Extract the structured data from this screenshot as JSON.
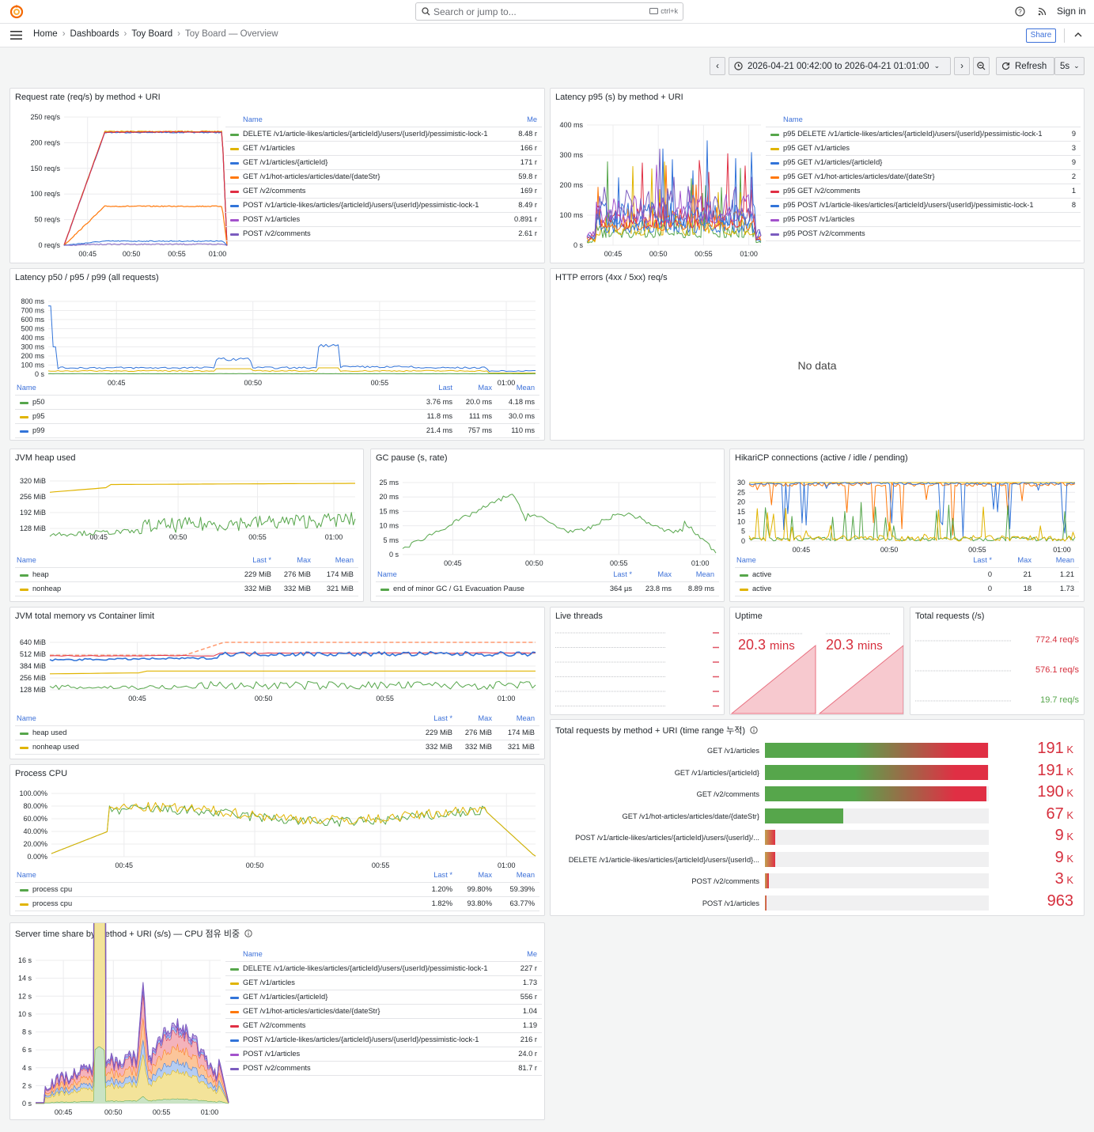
{
  "search": {
    "placeholder": "Search or jump to...",
    "shortcut": "ctrl+k"
  },
  "header": {
    "sign_in": "Sign in"
  },
  "breadcrumb": [
    "Home",
    "Dashboards",
    "Toy Board",
    "Toy Board — Overview"
  ],
  "toolbar": {
    "share": "Share",
    "time_range": "2026-04-21 00:42:00 to 2026-04-21 01:01:00",
    "refresh": "Refresh",
    "interval": "5s"
  },
  "colors": {
    "green": "#56a64b",
    "yellow": "#e0b400",
    "blue": "#3274d9",
    "orange": "#ff780a",
    "red": "#e02f44",
    "purple": "#a352cc",
    "violet": "#7b5cbf",
    "stat_red": "#d62f3d",
    "stat_green": "#56a64b"
  },
  "panels": {
    "req_rate": {
      "title": "Request rate (req/s) by method + URI",
      "yticks": [
        "250 req/s",
        "200 req/s",
        "150 req/s",
        "100 req/s",
        "50 req/s",
        "0 req/s"
      ],
      "xticks": [
        "00:45",
        "00:50",
        "00:55",
        "01:00"
      ],
      "legend_headers": {
        "name": "Name",
        "mean": "Me"
      },
      "legend": [
        {
          "name": "DELETE /v1/article-likes/articles/{articleId}/users/{userId}/pessimistic-lock-1",
          "mean": "8.48 r",
          "color": "green"
        },
        {
          "name": "GET /v1/articles",
          "mean": "166 r",
          "color": "yellow"
        },
        {
          "name": "GET /v1/articles/{articleId}",
          "mean": "171 r",
          "color": "blue"
        },
        {
          "name": "GET /v1/hot-articles/articles/date/{dateStr}",
          "mean": "59.8 r",
          "color": "orange"
        },
        {
          "name": "GET /v2/comments",
          "mean": "169 r",
          "color": "red"
        },
        {
          "name": "POST /v1/article-likes/articles/{articleId}/users/{userId}/pessimistic-lock-1",
          "mean": "8.49 r",
          "color": "blue"
        },
        {
          "name": "POST /v1/articles",
          "mean": "0.891 r",
          "color": "purple"
        },
        {
          "name": "POST /v2/comments",
          "mean": "2.61 r",
          "color": "violet"
        }
      ]
    },
    "lat_p95": {
      "title": "Latency p95 (s) by method + URI",
      "yticks": [
        "400 ms",
        "300 ms",
        "200 ms",
        "100 ms",
        "0 s"
      ],
      "xticks": [
        "00:45",
        "00:50",
        "00:55",
        "01:00"
      ],
      "legend_headers": {
        "name": "Name"
      },
      "legend": [
        {
          "name": "p95 DELETE /v1/article-likes/articles/{articleId}/users/{userId}/pessimistic-lock-1",
          "mean": "9",
          "color": "green"
        },
        {
          "name": "p95 GET /v1/articles",
          "mean": "3",
          "color": "yellow"
        },
        {
          "name": "p95 GET /v1/articles/{articleId}",
          "mean": "9",
          "color": "blue"
        },
        {
          "name": "p95 GET /v1/hot-articles/articles/date/{dateStr}",
          "mean": "2",
          "color": "orange"
        },
        {
          "name": "p95 GET /v2/comments",
          "mean": "1",
          "color": "red"
        },
        {
          "name": "p95 POST /v1/article-likes/articles/{articleId}/users/{userId}/pessimistic-lock-1",
          "mean": "8",
          "color": "blue"
        },
        {
          "name": "p95 POST /v1/articles",
          "mean": "",
          "color": "purple"
        },
        {
          "name": "p95 POST /v2/comments",
          "mean": "",
          "color": "violet"
        }
      ]
    },
    "lat_all": {
      "title": "Latency p50 / p95 / p99 (all requests)",
      "yticks": [
        "800 ms",
        "700 ms",
        "600 ms",
        "500 ms",
        "400 ms",
        "300 ms",
        "200 ms",
        "100 ms",
        "0 s"
      ],
      "xticks": [
        "00:45",
        "00:50",
        "00:55",
        "01:00"
      ],
      "legend_headers": {
        "name": "Name",
        "mean": "Mean",
        "max": "Max",
        "last": "Last"
      },
      "legend": [
        {
          "name": "p50",
          "mean": "4.18 ms",
          "max": "20.0 ms",
          "last": "3.76 ms",
          "color": "green"
        },
        {
          "name": "p95",
          "mean": "30.0 ms",
          "max": "111 ms",
          "last": "11.8 ms",
          "color": "yellow"
        },
        {
          "name": "p99",
          "mean": "110 ms",
          "max": "757 ms",
          "last": "21.4 ms",
          "color": "blue"
        }
      ]
    },
    "http_err": {
      "title": "HTTP errors (4xx / 5xx) req/s",
      "nodata": "No data"
    },
    "jvm_heap": {
      "title": "JVM heap used",
      "yticks": [
        "320 MiB",
        "256 MiB",
        "192 MiB",
        "128 MiB"
      ],
      "xticks": [
        "00:45",
        "00:50",
        "00:55",
        "01:00"
      ],
      "legend_headers": {
        "name": "Name",
        "mean": "Mean",
        "max": "Max",
        "last": "Last *"
      },
      "legend": [
        {
          "name": "heap",
          "mean": "174 MiB",
          "max": "276 MiB",
          "last": "229 MiB",
          "color": "green"
        },
        {
          "name": "nonheap",
          "mean": "321 MiB",
          "max": "332 MiB",
          "last": "332 MiB",
          "color": "yellow"
        }
      ]
    },
    "gc": {
      "title": "GC pause (s, rate)",
      "yticks": [
        "25 ms",
        "20 ms",
        "15 ms",
        "10 ms",
        "5 ms",
        "0 s"
      ],
      "xticks": [
        "00:45",
        "00:50",
        "00:55",
        "01:00"
      ],
      "legend_headers": {
        "name": "Name",
        "mean": "Mean",
        "max": "Max",
        "last": "Last *"
      },
      "legend": [
        {
          "name": "end of minor GC / G1 Evacuation Pause",
          "mean": "8.89 ms",
          "max": "23.8 ms",
          "last": "364 µs",
          "color": "green"
        }
      ]
    },
    "hikari": {
      "title": "HikariCP connections (active / idle / pending)",
      "yticks": [
        "30",
        "25",
        "20",
        "15",
        "10",
        "5",
        "0"
      ],
      "xticks": [
        "00:45",
        "00:50",
        "00:55",
        "01:00"
      ],
      "legend_headers": {
        "name": "Name",
        "mean": "Mean",
        "max": "Max",
        "last": "Last *"
      },
      "legend": [
        {
          "name": "active",
          "mean": "1.21",
          "max": "21",
          "last": "0",
          "color": "green"
        },
        {
          "name": "active",
          "mean": "1.73",
          "max": "18",
          "last": "0",
          "color": "yellow"
        }
      ]
    },
    "jvm_total": {
      "title": "JVM total memory vs Container limit",
      "yticks": [
        "640 MiB",
        "512 MiB",
        "384 MiB",
        "256 MiB",
        "128 MiB"
      ],
      "xticks": [
        "00:45",
        "00:50",
        "00:55",
        "01:00"
      ],
      "legend_headers": {
        "name": "Name",
        "mean": "Mean",
        "max": "Max",
        "last": "Last *"
      },
      "legend": [
        {
          "name": "heap used",
          "mean": "174 MiB",
          "max": "276 MiB",
          "last": "229 MiB",
          "color": "green"
        },
        {
          "name": "nonheap used",
          "mean": "321 MiB",
          "max": "332 MiB",
          "last": "332 MiB",
          "color": "yellow"
        }
      ]
    },
    "live_threads": {
      "title": "Live threads"
    },
    "uptime": {
      "title": "Uptime",
      "values": [
        "20.3",
        "20.3"
      ],
      "unit": "mins"
    },
    "total_req": {
      "title": "Total requests (/s)",
      "values": [
        {
          "value": "772.4 req/s",
          "color": "stat_red"
        },
        {
          "value": "576.1 req/s",
          "color": "stat_red"
        },
        {
          "value": "19.7 req/s",
          "color": "stat_green"
        }
      ]
    },
    "process_cpu": {
      "title": "Process CPU",
      "yticks": [
        "100.00%",
        "80.00%",
        "60.00%",
        "40.00%",
        "20.00%",
        "0.00%"
      ],
      "xticks": [
        "00:45",
        "00:50",
        "00:55",
        "01:00"
      ],
      "legend_headers": {
        "name": "Name",
        "mean": "Mean",
        "max": "Max",
        "last": "Last *"
      },
      "legend": [
        {
          "name": "process cpu",
          "mean": "59.39%",
          "max": "99.80%",
          "last": "1.20%",
          "color": "green"
        },
        {
          "name": "process cpu",
          "mean": "63.77%",
          "max": "93.80%",
          "last": "1.82%",
          "color": "yellow"
        }
      ]
    },
    "total_by_uri": {
      "title": "Total requests by method + URI (time range 누적)",
      "bars": [
        {
          "label": "GET /v1/articles",
          "value": "191",
          "unit": "K",
          "frac": 0.997
        },
        {
          "label": "GET /v1/articles/{articleId}",
          "value": "191",
          "unit": "K",
          "frac": 0.997
        },
        {
          "label": "GET /v2/comments",
          "value": "190",
          "unit": "K",
          "frac": 0.99
        },
        {
          "label": "GET /v1/hot-articles/articles/date/{dateStr}",
          "value": "67",
          "unit": "K",
          "frac": 0.35
        },
        {
          "label": "POST /v1/article-likes/articles/{articleId}/users/{userId}/...",
          "value": "9",
          "unit": "K",
          "frac": 0.047
        },
        {
          "label": "DELETE /v1/article-likes/articles/{articleId}/users/{userId}...",
          "value": "9",
          "unit": "K",
          "frac": 0.047
        },
        {
          "label": "POST /v2/comments",
          "value": "3",
          "unit": "K",
          "frac": 0.016
        },
        {
          "label": "POST /v1/articles",
          "value": "963",
          "unit": "",
          "frac": 0.005
        }
      ]
    },
    "server_time": {
      "title": "Server time share by method + URI (s/s) — CPU 점유 비중",
      "yticks": [
        "16 s",
        "14 s",
        "12 s",
        "10 s",
        "8 s",
        "6 s",
        "4 s",
        "2 s",
        "0 s"
      ],
      "xticks": [
        "00:45",
        "00:50",
        "00:55",
        "01:00"
      ],
      "legend_headers": {
        "name": "Name",
        "mean": "Me"
      },
      "legend": [
        {
          "name": "DELETE /v1/article-likes/articles/{articleId}/users/{userId}/pessimistic-lock-1",
          "mean": "227 r",
          "color": "green"
        },
        {
          "name": "GET /v1/articles",
          "mean": "1.73",
          "color": "yellow"
        },
        {
          "name": "GET /v1/articles/{articleId}",
          "mean": "556 r",
          "color": "blue"
        },
        {
          "name": "GET /v1/hot-articles/articles/date/{dateStr}",
          "mean": "1.04",
          "color": "orange"
        },
        {
          "name": "GET /v2/comments",
          "mean": "1.19",
          "color": "red"
        },
        {
          "name": "POST /v1/article-likes/articles/{articleId}/users/{userId}/pessimistic-lock-1",
          "mean": "216 r",
          "color": "blue"
        },
        {
          "name": "POST /v1/articles",
          "mean": "24.0 r",
          "color": "purple"
        },
        {
          "name": "POST /v2/comments",
          "mean": "81.7 r",
          "color": "violet"
        }
      ]
    }
  }
}
